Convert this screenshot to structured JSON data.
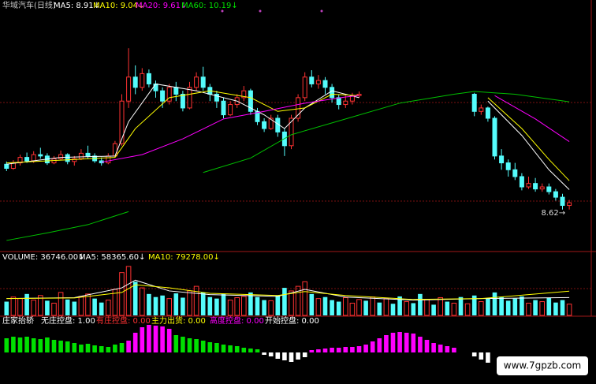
{
  "chart_data": [
    {
      "type": "candlestick",
      "legend": [
        {
          "label": "华域汽车(日线)",
          "color": "#c8c8c8"
        },
        {
          "label": "MA5: 8.91↓",
          "color": "#ffffff"
        },
        {
          "label": "MA10: 9.04↓",
          "color": "#ffff00"
        },
        {
          "label": "MA20: 9.61↓",
          "color": "#ff00ff"
        },
        {
          "label": "MA60: 10.19↓",
          "color": "#00e000"
        }
      ],
      "up_color": "#ff3232",
      "down_color": "#54fcfc",
      "ylim": [
        8.02,
        11.42
      ],
      "open": [
        9.28,
        9.22,
        9.3,
        9.38,
        9.33,
        9.42,
        9.4,
        9.3,
        9.36,
        9.42,
        9.32,
        9.36,
        9.44,
        9.4,
        9.33,
        9.3,
        9.4,
        9.58,
        10.2,
        10.55,
        10.4,
        10.6,
        10.45,
        10.35,
        10.2,
        10.4,
        10.3,
        10.1,
        10.4,
        10.55,
        10.4,
        10.3,
        10.2,
        10.0,
        10.15,
        10.25,
        10.35,
        10.05,
        9.9,
        9.8,
        9.95,
        9.75,
        9.55,
        9.95,
        10.25,
        10.55,
        10.45,
        10.5,
        10.4,
        10.25,
        10.15,
        10.2,
        10.28,
        null,
        null,
        null,
        null,
        null,
        null,
        null,
        null,
        null,
        null,
        null,
        null,
        null,
        null,
        null,
        null,
        10.3,
        10.05,
        10.1,
        9.95,
        9.4,
        9.3,
        9.2,
        9.1,
        8.95,
        9.0,
        8.92,
        8.95,
        8.88,
        8.8,
        8.68
      ],
      "high": [
        9.32,
        9.34,
        9.42,
        9.45,
        9.47,
        9.52,
        9.44,
        9.4,
        9.48,
        9.44,
        9.4,
        9.5,
        9.55,
        9.44,
        9.38,
        9.44,
        9.62,
        10.3,
        10.97,
        10.72,
        10.68,
        10.66,
        10.5,
        10.4,
        10.45,
        10.48,
        10.35,
        10.48,
        10.62,
        10.7,
        10.45,
        10.35,
        10.25,
        10.2,
        10.3,
        10.42,
        10.38,
        10.1,
        9.95,
        10.0,
        10.0,
        9.8,
        10.0,
        10.3,
        10.62,
        10.65,
        10.58,
        10.55,
        10.45,
        10.3,
        10.28,
        10.32,
        10.34,
        null,
        null,
        null,
        null,
        null,
        null,
        null,
        null,
        null,
        null,
        null,
        null,
        null,
        null,
        null,
        null,
        10.32,
        10.15,
        10.12,
        9.98,
        9.5,
        9.35,
        9.3,
        9.15,
        9.1,
        9.08,
        9.0,
        9.0,
        8.92,
        8.85,
        8.76
      ],
      "low": [
        9.18,
        9.2,
        9.26,
        9.3,
        9.3,
        9.36,
        9.27,
        9.28,
        9.34,
        9.28,
        9.26,
        9.34,
        9.36,
        9.3,
        9.26,
        9.28,
        9.38,
        9.55,
        10.1,
        10.3,
        10.35,
        10.4,
        10.25,
        10.1,
        10.15,
        10.2,
        10.05,
        10.08,
        10.35,
        10.35,
        10.2,
        10.1,
        9.95,
        9.98,
        10.1,
        10.2,
        10.0,
        9.85,
        9.75,
        9.78,
        9.68,
        9.4,
        9.5,
        9.9,
        10.2,
        10.4,
        10.38,
        10.3,
        10.18,
        10.08,
        10.1,
        10.15,
        10.25,
        null,
        null,
        null,
        null,
        null,
        null,
        null,
        null,
        null,
        null,
        null,
        null,
        null,
        null,
        null,
        null,
        9.98,
        10.0,
        9.9,
        9.35,
        9.2,
        9.1,
        9.05,
        8.9,
        8.92,
        8.88,
        8.88,
        8.84,
        8.75,
        8.62,
        8.62
      ],
      "close": [
        9.22,
        9.3,
        9.38,
        9.33,
        9.42,
        9.4,
        9.3,
        9.36,
        9.42,
        9.32,
        9.36,
        9.44,
        9.4,
        9.33,
        9.3,
        9.4,
        9.58,
        10.2,
        10.55,
        10.4,
        10.6,
        10.45,
        10.35,
        10.2,
        10.4,
        10.3,
        10.1,
        10.4,
        10.55,
        10.4,
        10.3,
        10.2,
        10.0,
        10.15,
        10.25,
        10.35,
        10.05,
        9.9,
        9.8,
        9.95,
        9.75,
        9.55,
        9.95,
        10.25,
        10.55,
        10.45,
        10.5,
        10.4,
        10.25,
        10.15,
        10.2,
        10.28,
        10.3,
        null,
        null,
        null,
        null,
        null,
        null,
        null,
        null,
        null,
        null,
        null,
        null,
        null,
        null,
        null,
        null,
        10.05,
        10.1,
        9.95,
        9.4,
        9.3,
        9.2,
        9.1,
        8.95,
        9.0,
        8.92,
        8.95,
        8.88,
        8.8,
        8.68,
        8.72
      ],
      "lines": [
        {
          "color": "#ffffff",
          "x": [
            0,
            8,
            16,
            18,
            22,
            28,
            34,
            38,
            41,
            44,
            48,
            52,
            null,
            71,
            76,
            80,
            83
          ],
          "values": [
            9.28,
            9.38,
            9.4,
            9.9,
            10.45,
            10.35,
            10.2,
            10.0,
            9.8,
            10.1,
            10.35,
            10.25,
            null,
            10.2,
            9.7,
            9.2,
            8.91
          ]
        },
        {
          "color": "#ffff00",
          "x": [
            0,
            10,
            16,
            19,
            24,
            30,
            36,
            40,
            44,
            48,
            52,
            null,
            71,
            76,
            80,
            83
          ],
          "values": [
            9.3,
            9.35,
            9.38,
            9.8,
            10.25,
            10.35,
            10.25,
            10.05,
            10.1,
            10.3,
            10.28,
            null,
            10.25,
            9.8,
            9.35,
            9.04
          ]
        },
        {
          "color": "#ff00ff",
          "x": [
            14,
            20,
            26,
            32,
            38,
            44,
            50,
            52,
            null,
            72,
            78,
            83
          ],
          "values": [
            9.31,
            9.42,
            9.65,
            9.94,
            10.05,
            10.17,
            10.26,
            10.28,
            null,
            10.28,
            9.94,
            9.61
          ]
        },
        {
          "color": "#00c000",
          "x": [
            0,
            6,
            12,
            18,
            null,
            29,
            36,
            42,
            50,
            58,
            66,
            69,
            75,
            83
          ],
          "values": [
            8.17,
            8.28,
            8.4,
            8.59,
            null,
            9.16,
            9.37,
            9.71,
            9.94,
            10.17,
            10.3,
            10.34,
            10.3,
            10.19
          ]
        }
      ],
      "annotation": "8.62→"
    },
    {
      "type": "bar",
      "legend": [
        {
          "label": "VOLUME: 36746.00↓",
          "color": "#ffffff"
        },
        {
          "label": "MA5: 58365.60↓",
          "color": "#ffffff"
        },
        {
          "label": "MA10: 79278.00↓",
          "color": "#ffff00"
        }
      ],
      "ylim": [
        0,
        170000
      ],
      "series": [
        {
          "color": "#ff3232",
          "hollow": true,
          "values": [
            null,
            60000,
            55000,
            null,
            50000,
            65000,
            null,
            40000,
            75000,
            null,
            null,
            62000,
            70000,
            null,
            null,
            50000,
            85000,
            140000,
            160000,
            null,
            90000,
            null,
            null,
            null,
            55000,
            null,
            null,
            80000,
            95000,
            null,
            null,
            null,
            null,
            50000,
            58000,
            62000,
            null,
            null,
            null,
            48000,
            null,
            null,
            80000,
            95000,
            110000,
            null,
            55000,
            null,
            null,
            null,
            58000,
            40000,
            52000,
            null,
            60000,
            null,
            55000,
            null,
            null,
            45000,
            null,
            null,
            52000,
            null,
            58000,
            null,
            40000,
            null,
            38000,
            null,
            45000,
            null,
            null,
            null,
            null,
            null,
            null,
            40000,
            null,
            45000,
            null,
            null,
            null,
            36746
          ]
        },
        {
          "color": "#54fcfc",
          "hollow": false,
          "values": [
            45000,
            null,
            null,
            70000,
            null,
            null,
            48000,
            null,
            null,
            52000,
            45000,
            null,
            null,
            55000,
            42000,
            null,
            null,
            null,
            null,
            110000,
            null,
            70000,
            60000,
            65000,
            null,
            72000,
            58000,
            null,
            null,
            75000,
            60000,
            55000,
            70000,
            null,
            null,
            null,
            75000,
            60000,
            50000,
            null,
            65000,
            90000,
            null,
            null,
            null,
            70000,
            null,
            60000,
            50000,
            45000,
            null,
            null,
            null,
            48000,
            null,
            42000,
            null,
            38000,
            62000,
            null,
            40000,
            70000,
            null,
            35000,
            null,
            45000,
            null,
            60000,
            null,
            65000,
            null,
            55000,
            75000,
            60000,
            48000,
            55000,
            62000,
            null,
            50000,
            null,
            58000,
            42000,
            50000,
            null
          ]
        }
      ],
      "lines": [
        {
          "color": "#ffffff",
          "x": [
            0,
            10,
            17,
            19,
            24,
            30,
            40,
            44,
            50,
            60,
            70,
            83
          ],
          "values": [
            55000,
            58000,
            90000,
            115000,
            80000,
            68000,
            62000,
            85000,
            60000,
            50000,
            55000,
            58365.6
          ]
        },
        {
          "color": "#ffff00",
          "x": [
            0,
            10,
            17,
            19,
            24,
            30,
            40,
            44,
            50,
            60,
            70,
            83
          ],
          "values": [
            55000,
            57000,
            75000,
            100000,
            90000,
            72000,
            65000,
            78000,
            65000,
            52000,
            55000,
            79278
          ]
        }
      ]
    },
    {
      "type": "bar",
      "legend": [
        {
          "label": "庄家抬轿",
          "color": "#ffffff"
        },
        {
          "label": "无庄控盘: 1.00",
          "color": "#ffffff"
        },
        {
          "label": "有庄控盘: 0.00",
          "color": "#ff3232"
        },
        {
          "label": "主力出货: 0.00",
          "color": "#ffff00"
        },
        {
          "label": "高度控盘: 0.00",
          "color": "#ff00ff"
        },
        {
          "label": "开始控盘: 0.00",
          "color": "#ffffff"
        }
      ],
      "ylim": [
        -13,
        35
      ],
      "series": [
        {
          "color": "#00e000",
          "hollow": false,
          "values": [
            18,
            20,
            19,
            20,
            18,
            17,
            19,
            16,
            15,
            14,
            12,
            10,
            11,
            9,
            8,
            7,
            10,
            12,
            null,
            null,
            null,
            null,
            null,
            null,
            null,
            22,
            20,
            18,
            17,
            15,
            13,
            12,
            10,
            9,
            8,
            6,
            5,
            4,
            null,
            null,
            null,
            null,
            null,
            null,
            null,
            null,
            null,
            null,
            null,
            null,
            null,
            null,
            null,
            null,
            null,
            null,
            null,
            null,
            null,
            null,
            null,
            null,
            null,
            null,
            null,
            null,
            null,
            null,
            null,
            null,
            null,
            null,
            null,
            null,
            null,
            null,
            null,
            null,
            null,
            null,
            null,
            null,
            null,
            null
          ]
        },
        {
          "color": "#ff00ff",
          "hollow": false,
          "values": [
            null,
            null,
            null,
            null,
            null,
            null,
            null,
            null,
            null,
            null,
            null,
            null,
            null,
            null,
            null,
            null,
            null,
            null,
            15,
            25,
            32,
            35,
            34,
            33,
            30,
            null,
            null,
            null,
            null,
            null,
            null,
            null,
            null,
            null,
            null,
            null,
            null,
            null,
            null,
            null,
            null,
            null,
            null,
            null,
            null,
            3,
            4,
            5,
            6,
            6,
            7,
            7,
            8,
            10,
            14,
            18,
            22,
            25,
            26,
            25,
            24,
            20,
            16,
            12,
            10,
            8,
            6,
            null,
            null,
            null,
            null,
            null,
            null,
            null,
            null,
            null,
            null,
            null,
            null,
            null,
            null,
            null,
            null,
            null
          ]
        },
        {
          "color": "#ffffff",
          "hollow": false,
          "values": [
            null,
            null,
            null,
            null,
            null,
            null,
            null,
            null,
            null,
            null,
            null,
            null,
            null,
            null,
            null,
            null,
            null,
            null,
            null,
            null,
            null,
            null,
            null,
            null,
            null,
            null,
            null,
            null,
            null,
            null,
            null,
            null,
            null,
            null,
            null,
            null,
            null,
            null,
            -3,
            -5,
            -8,
            -10,
            -12,
            -9,
            -6,
            null,
            null,
            null,
            null,
            null,
            null,
            null,
            null,
            null,
            null,
            null,
            null,
            null,
            null,
            null,
            null,
            null,
            null,
            null,
            null,
            null,
            null,
            null,
            null,
            -5,
            -9,
            -13,
            null,
            null,
            null,
            null,
            null,
            null,
            null,
            null,
            null,
            null,
            null,
            null
          ]
        }
      ]
    }
  ],
  "watermark": "www.7gpzb.com"
}
